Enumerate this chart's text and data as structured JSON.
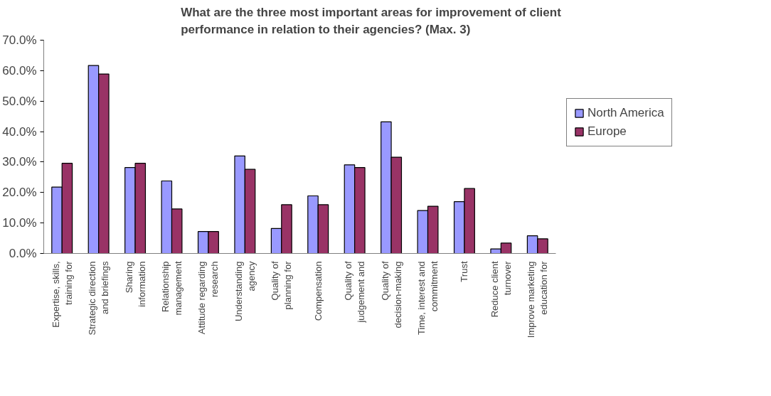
{
  "chart_data": {
    "type": "bar",
    "title": "What are the three most important areas for improvement of client\nperformance in relation to their agencies? (Max. 3)",
    "categories": [
      "Expertise, skills,\ntraining for",
      "Strategic direction\nand briefings",
      "Sharing\ninformation",
      "Relationship\nmanagement",
      "Attitude regarding\nresearch",
      "Understanding\nagency",
      "Quality of\nplanning for",
      "Compensation",
      "Quality of\njudgement and",
      "Quality of\ndecision-making",
      "Time, interest and\ncommitment",
      "Trust",
      "Reduce client\nturnover",
      "Improve marketing\neducation for"
    ],
    "series": [
      {
        "name": "North America",
        "color": "#9999ff",
        "values": [
          21.8,
          61.7,
          28.2,
          23.8,
          7.2,
          32.0,
          8.2,
          18.9,
          29.1,
          43.2,
          14.1,
          17.0,
          1.5,
          5.8
        ]
      },
      {
        "name": "Europe",
        "color": "#993366",
        "values": [
          29.6,
          58.9,
          29.6,
          14.6,
          7.2,
          27.6,
          16.0,
          16.0,
          28.2,
          31.6,
          15.5,
          21.3,
          3.4,
          4.8
        ]
      }
    ],
    "ylim": [
      0,
      70
    ],
    "yticks": [
      {
        "value": 0,
        "label": "0.0%"
      },
      {
        "value": 10,
        "label": "10.0%"
      },
      {
        "value": 20,
        "label": "20.0%"
      },
      {
        "value": 30,
        "label": "30.0%"
      },
      {
        "value": 40,
        "label": "40.0%"
      },
      {
        "value": 50,
        "label": "50.0%"
      },
      {
        "value": 60,
        "label": "60.0%"
      },
      {
        "value": 70,
        "label": "70.0%"
      }
    ],
    "grid": false,
    "legend": "right"
  }
}
